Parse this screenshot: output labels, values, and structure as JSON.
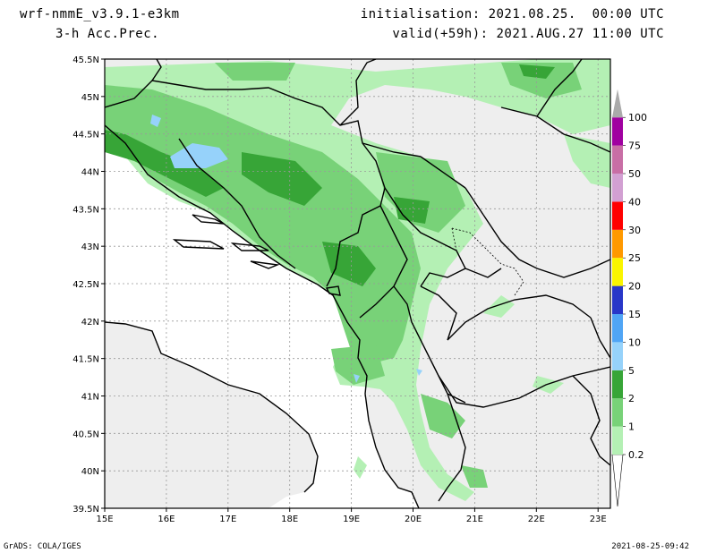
{
  "header": {
    "model": "wrf-nmmE_v3.9.1-e3km",
    "field": "3-h Acc.Prec.",
    "initialisation": "initialisation: 2021.08.25.  00:00 UTC",
    "valid": "valid(+59h): 2021.AUG.27 11:00 UTC"
  },
  "map": {
    "lat_labels": [
      "45.5N",
      "45N",
      "44.5N",
      "44N",
      "43.5N",
      "43N",
      "42.5N",
      "42N",
      "41.5N",
      "41N",
      "40.5N",
      "40N",
      "39.5N"
    ],
    "lon_labels": [
      "15E",
      "16E",
      "17E",
      "18E",
      "19E",
      "20E",
      "21E",
      "22E",
      "23E"
    ],
    "lat_range": [
      39.5,
      45.5
    ],
    "lon_range": [
      15,
      23.2
    ],
    "grid": true,
    "colors": {
      "land": "#eeeeee",
      "sea": "#ffffff",
      "border": "#000000"
    }
  },
  "colorbar": {
    "labels": [
      "0.2",
      "1",
      "2",
      "5",
      "10",
      "15",
      "20",
      "25",
      "30",
      "40",
      "50",
      "75",
      "100"
    ],
    "colors": [
      "#b4f0b4",
      "#78d278",
      "#37a537",
      "#96d2fa",
      "#50a5f5",
      "#2837c8",
      "#faf500",
      "#ff9900",
      "#ff0000",
      "#d2a0d2",
      "#c86ea5",
      "#a000a0",
      "#aaaaaa"
    ]
  },
  "footer": {
    "left": "GrADS: COLA/IGES",
    "right": "2021-08-25-09:42"
  }
}
